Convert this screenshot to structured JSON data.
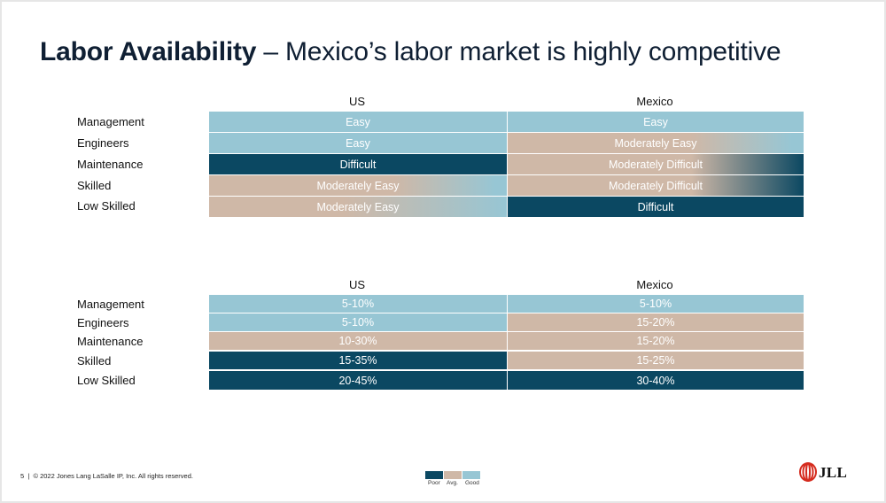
{
  "title": {
    "strong": "Labor Availability",
    "rest": " – Mexico’s labor market is highly competitive"
  },
  "table1": {
    "columns": [
      "US",
      "Mexico"
    ],
    "rows": [
      {
        "label": "Management",
        "us": "Easy",
        "mexico": "Easy"
      },
      {
        "label": "Engineers",
        "us": "Easy",
        "mexico": "Moderately Easy"
      },
      {
        "label": "Maintenance",
        "us": "Difficult",
        "mexico": "Moderately Difficult"
      },
      {
        "label": "Skilled",
        "us": "Moderately Easy",
        "mexico": "Moderately Difficult"
      },
      {
        "label": "Low Skilled",
        "us": "Moderately Easy",
        "mexico": "Difficult"
      }
    ]
  },
  "table2": {
    "columns": [
      "US",
      "Mexico"
    ],
    "rows": [
      {
        "label": "Management",
        "us": "5-10%",
        "mexico": "5-10%"
      },
      {
        "label": "Engineers",
        "us": "5-10%",
        "mexico": "15-20%"
      },
      {
        "label": "Maintenance",
        "us": "10-30%",
        "mexico": "15-20%"
      },
      {
        "label": "Skilled",
        "us": "15-35%",
        "mexico": "15-25%"
      },
      {
        "label": "Low Skilled",
        "us": "20-45%",
        "mexico": "30-40%"
      }
    ]
  },
  "legend": [
    {
      "label": "Poor",
      "color": "#0b4862"
    },
    {
      "label": "Avg.",
      "color": "#cfb8a7"
    },
    {
      "label": "Good",
      "color": "#97c6d4"
    }
  ],
  "footer": {
    "page": "5",
    "separator": "|",
    "copyright": "© 2022 Jones Lang LaSalle IP, Inc. All rights reserved."
  },
  "logo": {
    "text": "JLL",
    "color": "#d52b1e"
  },
  "colors": {
    "good": "#97c6d4",
    "avg": "#cfb8a7",
    "poor": "#0b4862"
  }
}
